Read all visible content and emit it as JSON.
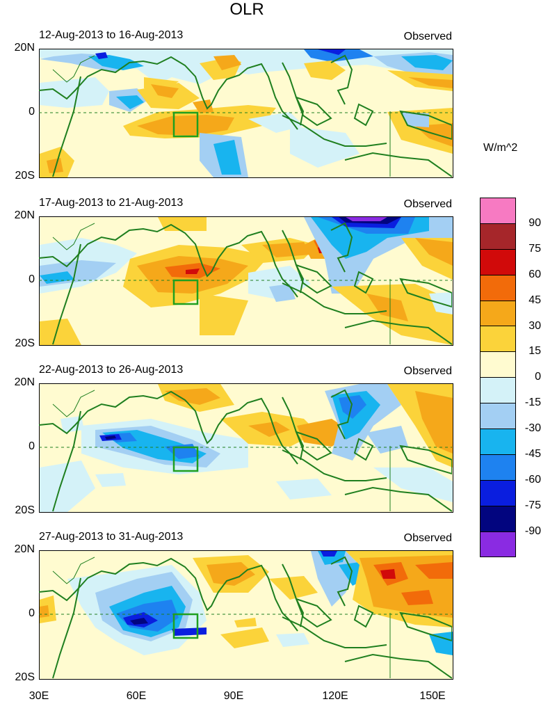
{
  "title": "OLR",
  "units": "W/m^2",
  "x_labels": [
    "30E",
    "60E",
    "90E",
    "120E",
    "150E"
  ],
  "y_labels": [
    "20N",
    "0",
    "20S"
  ],
  "panels": [
    {
      "period": "12-Aug-2013 to 16-Aug-2013",
      "label": "Observed"
    },
    {
      "period": "17-Aug-2013 to 21-Aug-2013",
      "label": "Observed"
    },
    {
      "period": "22-Aug-2013 to 26-Aug-2013",
      "label": "Observed"
    },
    {
      "period": "27-Aug-2013 to 31-Aug-2013",
      "label": "Observed"
    }
  ],
  "colorbar": {
    "levels": [
      "90",
      "75",
      "60",
      "45",
      "30",
      "15",
      "0",
      "-15",
      "-30",
      "-45",
      "-60",
      "-75",
      "-90"
    ],
    "colors": [
      "#f77ac2",
      "#a6262a",
      "#d10a0a",
      "#f26b0a",
      "#f5a81a",
      "#fbd33a",
      "#fffbd0",
      "#d4f2f8",
      "#a3cff3",
      "#18b4ef",
      "#1e82f0",
      "#0a1edf",
      "#02057f",
      "#8a2be2"
    ]
  },
  "colors": {
    "coast": "#1f7f1f",
    "equator": "#1f7f1f",
    "box": "#1f9f1f"
  }
}
